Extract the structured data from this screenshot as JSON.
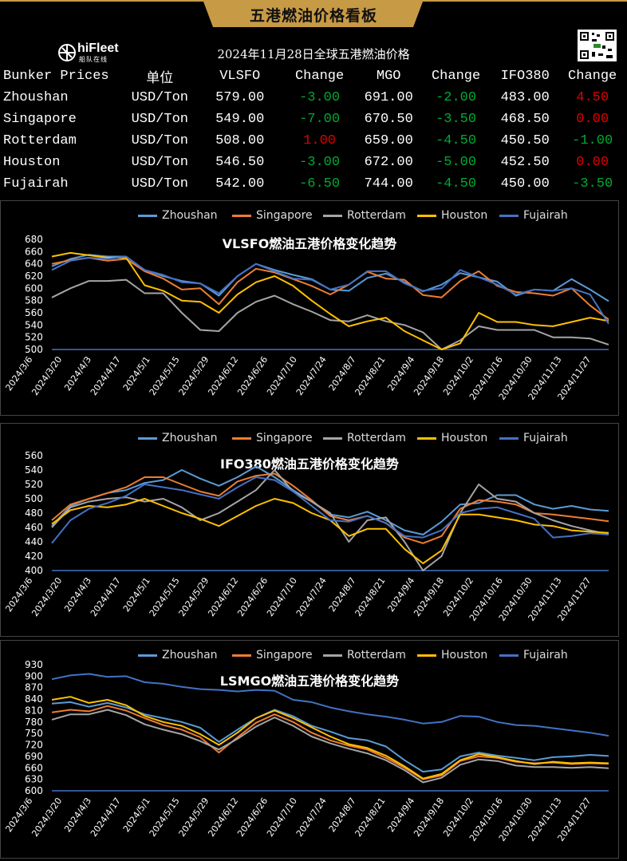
{
  "banner": {
    "title": "五港燃油价格看板"
  },
  "logo": {
    "name": "hiFleet",
    "sub": "船队在线"
  },
  "table": {
    "title": "2024年11月28日全球五港燃油价格",
    "headers": [
      "Bunker Prices",
      "单位",
      "VLSFO",
      "Change",
      "MGO",
      "Change",
      "IFO380",
      "Change"
    ],
    "rows": [
      {
        "port": "Zhoushan",
        "unit": "USD/Ton",
        "vlsfo": "579.00",
        "vlsfo_chg": "-3.00",
        "mgo": "691.00",
        "mgo_chg": "-2.00",
        "ifo": "483.00",
        "ifo_chg": "4.50",
        "ifo_up": true
      },
      {
        "port": "Singapore",
        "unit": "USD/Ton",
        "vlsfo": "549.00",
        "vlsfo_chg": "-7.00",
        "mgo": "670.50",
        "mgo_chg": "-3.50",
        "ifo": "468.50",
        "ifo_chg": "0.00",
        "ifo_up": true
      },
      {
        "port": "Rotterdam",
        "unit": "USD/Ton",
        "vlsfo": "508.00",
        "vlsfo_chg": "1.00",
        "vlsfo_up": true,
        "mgo": "659.00",
        "mgo_chg": "-4.50",
        "ifo": "450.50",
        "ifo_chg": "-1.00"
      },
      {
        "port": "Houston",
        "unit": "USD/Ton",
        "vlsfo": "546.50",
        "vlsfo_chg": "-3.00",
        "mgo": "672.00",
        "mgo_chg": "-5.00",
        "ifo": "452.50",
        "ifo_chg": "0.00",
        "ifo_up": true
      },
      {
        "port": "Fujairah",
        "unit": "USD/Ton",
        "vlsfo": "542.00",
        "vlsfo_chg": "-6.50",
        "mgo": "744.00",
        "mgo_chg": "-4.50",
        "ifo": "450.00",
        "ifo_chg": "-3.50"
      }
    ]
  },
  "legend_colors": {
    "Zhoushan": "#5b9bd5",
    "Singapore": "#ed7d31",
    "Rotterdam": "#a5a5a5",
    "Houston": "#ffc000",
    "Fujairah": "#4472c4"
  },
  "chart_data": [
    {
      "type": "line",
      "title": "VLSFO燃油五港价格变化趋势",
      "ylim": [
        500,
        680
      ],
      "yticks": [
        500,
        520,
        540,
        560,
        580,
        600,
        620,
        640,
        660,
        680
      ],
      "xticklabels": [
        "2024/3/6",
        "2024/3/20",
        "2024/4/3",
        "2024/4/17",
        "2024/5/1",
        "2024/5/15",
        "2024/5/29",
        "2024/6/12",
        "2024/6/26",
        "2024/7/10",
        "2024/7/24",
        "2024/8/7",
        "2024/8/21",
        "2024/9/4",
        "2024/9/18",
        "2024/10/2",
        "2024/10/16",
        "2024/10/30",
        "2024/11/13",
        "2024/11/27"
      ],
      "grid": false,
      "legend": "top",
      "series": [
        {
          "name": "Zhoushan",
          "values": [
            636,
            648,
            655,
            652,
            652,
            630,
            620,
            612,
            608,
            588,
            620,
            640,
            630,
            622,
            615,
            598,
            596,
            617,
            624,
            610,
            595,
            606,
            625,
            618,
            611,
            588,
            598,
            596,
            615,
            598,
            579
          ]
        },
        {
          "name": "Singapore",
          "values": [
            640,
            646,
            650,
            645,
            648,
            628,
            616,
            598,
            600,
            574,
            610,
            632,
            626,
            615,
            604,
            590,
            606,
            627,
            616,
            614,
            589,
            585,
            612,
            628,
            604,
            594,
            592,
            588,
            600,
            572,
            549
          ]
        },
        {
          "name": "Rotterdam",
          "values": [
            585,
            600,
            612,
            612,
            614,
            592,
            592,
            560,
            532,
            530,
            560,
            578,
            588,
            574,
            562,
            548,
            546,
            556,
            546,
            540,
            528,
            500,
            515,
            538,
            532,
            532,
            532,
            520,
            520,
            518,
            508
          ]
        },
        {
          "name": "Houston",
          "values": [
            652,
            658,
            654,
            650,
            650,
            605,
            596,
            580,
            578,
            560,
            590,
            610,
            620,
            604,
            580,
            558,
            538,
            546,
            552,
            530,
            515,
            500,
            510,
            560,
            545,
            545,
            540,
            538,
            545,
            552,
            546.5
          ]
        },
        {
          "name": "Fujairah",
          "values": [
            630,
            645,
            650,
            648,
            652,
            630,
            622,
            610,
            608,
            592,
            620,
            640,
            628,
            616,
            614,
            598,
            606,
            628,
            628,
            608,
            596,
            600,
            630,
            618,
            606,
            590,
            598,
            596,
            600,
            590,
            542
          ]
        }
      ]
    },
    {
      "type": "line",
      "title": "IFO380燃油五港价格变化趋势",
      "ylim": [
        400,
        560
      ],
      "yticks": [
        400,
        420,
        440,
        460,
        480,
        500,
        520,
        540,
        560
      ],
      "xticklabels": [
        "2024/3/6",
        "2024/3/20",
        "2024/4/3",
        "2024/4/17",
        "2024/5/1",
        "2024/5/15",
        "2024/5/29",
        "2024/6/12",
        "2024/6/26",
        "2024/7/10",
        "2024/7/24",
        "2024/8/7",
        "2024/8/21",
        "2024/9/4",
        "2024/9/18",
        "2024/10/2",
        "2024/10/16",
        "2024/10/30",
        "2024/11/13",
        "2024/11/27"
      ],
      "grid": false,
      "legend": "top",
      "series": [
        {
          "name": "Zhoushan",
          "values": [
            462,
            490,
            500,
            508,
            512,
            522,
            526,
            540,
            528,
            518,
            530,
            545,
            530,
            512,
            496,
            478,
            474,
            482,
            470,
            456,
            450,
            468,
            492,
            494,
            505,
            505,
            492,
            486,
            490,
            485,
            483
          ]
        },
        {
          "name": "Singapore",
          "values": [
            470,
            492,
            500,
            508,
            516,
            530,
            530,
            520,
            510,
            504,
            524,
            532,
            535,
            518,
            498,
            476,
            470,
            476,
            466,
            446,
            438,
            448,
            486,
            498,
            496,
            492,
            480,
            478,
            475,
            472,
            468.5
          ]
        },
        {
          "name": "Rotterdam",
          "values": [
            460,
            488,
            496,
            500,
            502,
            496,
            500,
            488,
            470,
            480,
            496,
            512,
            540,
            510,
            496,
            480,
            440,
            470,
            474,
            440,
            400,
            420,
            480,
            520,
            500,
            496,
            480,
            470,
            462,
            456,
            450.5
          ]
        },
        {
          "name": "Houston",
          "values": [
            465,
            484,
            490,
            488,
            492,
            500,
            490,
            480,
            472,
            462,
            476,
            490,
            500,
            494,
            480,
            470,
            448,
            458,
            458,
            430,
            410,
            428,
            478,
            478,
            474,
            470,
            464,
            462,
            456,
            454,
            452.5
          ]
        },
        {
          "name": "Fujairah",
          "values": [
            438,
            470,
            486,
            494,
            504,
            520,
            516,
            512,
            506,
            500,
            516,
            530,
            526,
            510,
            490,
            470,
            468,
            476,
            466,
            448,
            446,
            456,
            480,
            486,
            488,
            480,
            472,
            446,
            448,
            452,
            450
          ]
        }
      ]
    },
    {
      "type": "line",
      "title": "LSMGO燃油五港价格变化趋势",
      "ylim": [
        600,
        930
      ],
      "yticks": [
        600,
        630,
        660,
        690,
        720,
        750,
        780,
        810,
        840,
        870,
        900,
        930
      ],
      "xticklabels": [
        "2024/3/6",
        "2024/3/20",
        "2024/4/3",
        "2024/4/17",
        "2024/5/1",
        "2024/5/15",
        "2024/5/29",
        "2024/6/12",
        "2024/6/26",
        "2024/7/10",
        "2024/7/24",
        "2024/8/7",
        "2024/8/21",
        "2024/9/4",
        "2024/9/18",
        "2024/10/2",
        "2024/10/16",
        "2024/10/30",
        "2024/11/13",
        "2024/11/27"
      ],
      "grid": false,
      "legend": "top",
      "series": [
        {
          "name": "Zhoushan",
          "values": [
            828,
            832,
            820,
            830,
            818,
            800,
            790,
            780,
            765,
            728,
            760,
            790,
            812,
            795,
            770,
            755,
            738,
            732,
            716,
            680,
            650,
            656,
            690,
            700,
            692,
            686,
            680,
            688,
            690,
            694,
            691
          ]
        },
        {
          "name": "Singapore",
          "values": [
            805,
            812,
            808,
            822,
            810,
            790,
            772,
            760,
            740,
            700,
            740,
            778,
            800,
            780,
            752,
            732,
            718,
            708,
            686,
            660,
            630,
            640,
            678,
            690,
            686,
            676,
            672,
            674,
            670,
            672,
            670.5
          ]
        },
        {
          "name": "Rotterdam",
          "values": [
            786,
            800,
            800,
            812,
            798,
            774,
            760,
            748,
            730,
            708,
            736,
            768,
            792,
            770,
            742,
            724,
            710,
            698,
            680,
            654,
            622,
            634,
            668,
            682,
            678,
            666,
            662,
            662,
            660,
            662,
            659
          ]
        },
        {
          "name": "Houston",
          "values": [
            838,
            846,
            830,
            838,
            824,
            796,
            780,
            770,
            748,
            720,
            752,
            790,
            810,
            790,
            766,
            742,
            722,
            712,
            692,
            664,
            632,
            644,
            680,
            696,
            688,
            678,
            670,
            676,
            672,
            674,
            672
          ]
        },
        {
          "name": "Fujairah",
          "values": [
            892,
            902,
            906,
            898,
            900,
            884,
            880,
            872,
            866,
            864,
            860,
            864,
            862,
            838,
            832,
            818,
            808,
            800,
            794,
            786,
            776,
            780,
            796,
            794,
            780,
            772,
            770,
            764,
            758,
            752,
            744
          ]
        }
      ]
    }
  ]
}
